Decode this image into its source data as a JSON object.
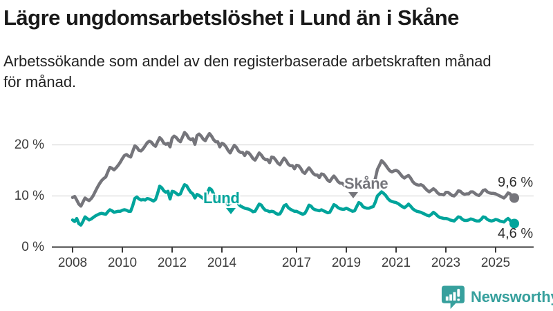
{
  "header": {
    "title": "Lägre ungdomsarbetslöshet i Lund än i Skåne",
    "subtitle_line1": "Arbetssökande som andel av den registerbaserade arbetskraften månad",
    "subtitle_line2": "för månad."
  },
  "chart_data": {
    "type": "line",
    "title": "Lägre ungdomsarbetslöshet i Lund än i Skåne",
    "xlabel": "",
    "ylabel": "Arbetssökande som andel av den registerbaserade arbetskraften",
    "unit": "%",
    "x_start": "2008-01",
    "x_end": "2025-10",
    "x_resolution": "monthly",
    "ylim": [
      0,
      24
    ],
    "grid": "horizontal",
    "legend_position": "inline-labels",
    "x_tick_years": [
      2008,
      2010,
      2012,
      2014,
      2017,
      2019,
      2021,
      2023,
      2025
    ],
    "x_tick_labels": [
      "2008",
      "2010",
      "2012",
      "2014",
      "2017",
      "2019",
      "2021",
      "2023",
      "2025"
    ],
    "y_ticks": [
      {
        "value": 0,
        "label": "0 %"
      },
      {
        "value": 10,
        "label": "10 %"
      },
      {
        "value": 20,
        "label": "20 %"
      }
    ],
    "series": [
      {
        "name": "Skåne",
        "color": "#75757b",
        "end_label": "9,6 %",
        "end_value": 9.6,
        "values": [
          9.7,
          9.9,
          9.2,
          8.4,
          8.0,
          8.8,
          9.6,
          9.3,
          9.1,
          9.5,
          10.1,
          10.9,
          11.7,
          12.4,
          13.0,
          13.4,
          13.7,
          14.7,
          15.6,
          15.4,
          15.1,
          15.5,
          16.0,
          16.6,
          17.3,
          17.9,
          18.1,
          17.8,
          17.6,
          18.7,
          19.8,
          19.5,
          18.9,
          18.8,
          19.2,
          19.8,
          20.4,
          20.7,
          20.5,
          20.0,
          19.7,
          20.6,
          21.4,
          21.0,
          20.3,
          20.1,
          20.3,
          19.6,
          21.3,
          21.7,
          21.4,
          20.9,
          20.6,
          21.5,
          22.4,
          22.0,
          21.3,
          21.0,
          21.2,
          20.1,
          21.8,
          22.1,
          21.7,
          21.1,
          20.8,
          21.6,
          22.2,
          21.7,
          21.0,
          20.6,
          20.6,
          19.6,
          20.3,
          20.1,
          19.6,
          18.9,
          18.4,
          19.2,
          19.9,
          19.5,
          18.8,
          18.5,
          18.5,
          17.9,
          18.6,
          18.4,
          17.9,
          17.3,
          17.0,
          17.7,
          18.4,
          18.0,
          17.4,
          17.1,
          17.1,
          16.5,
          17.6,
          17.5,
          17.0,
          16.4,
          16.1,
          16.8,
          17.4,
          16.9,
          16.2,
          15.9,
          15.9,
          15.3,
          16.0,
          15.9,
          15.4,
          14.7,
          14.4,
          15.0,
          15.5,
          15.0,
          14.4,
          14.1,
          14.1,
          13.6,
          14.3,
          14.2,
          13.7,
          13.1,
          12.8,
          13.4,
          13.9,
          13.4,
          12.8,
          12.5,
          12.5,
          12.1,
          12.7,
          12.6,
          12.2,
          11.8,
          11.6,
          12.3,
          12.9,
          12.5,
          12.0,
          11.8,
          11.9,
          11.9,
          12.3,
          12.4,
          13.4,
          15.2,
          16.0,
          16.9,
          16.5,
          16.0,
          15.4,
          14.9,
          14.7,
          14.9,
          15.0,
          14.8,
          14.3,
          13.8,
          13.5,
          13.8,
          14.0,
          13.5,
          12.8,
          12.4,
          12.2,
          12.1,
          12.2,
          12.0,
          11.5,
          11.1,
          10.8,
          11.1,
          11.4,
          11.1,
          10.6,
          10.3,
          10.3,
          10.2,
          10.7,
          10.7,
          10.4,
          10.1,
          10.0,
          10.4,
          11.0,
          10.9,
          10.5,
          10.3,
          10.4,
          10.4,
          10.8,
          10.8,
          10.5,
          10.2,
          10.1,
          10.5,
          11.1,
          11.2,
          10.8,
          10.6,
          10.5,
          10.5,
          10.4,
          10.2,
          10.0,
          9.8,
          9.6,
          10.0,
          10.6,
          10.4,
          9.7,
          9.6
        ]
      },
      {
        "name": "Lund",
        "color": "#00a49b",
        "end_label": "4,6 %",
        "end_value": 4.6,
        "values": [
          5.3,
          5.0,
          5.6,
          4.6,
          4.3,
          5.0,
          5.9,
          5.6,
          5.3,
          5.5,
          5.8,
          6.1,
          6.3,
          6.5,
          6.6,
          6.5,
          6.4,
          6.9,
          7.3,
          7.1,
          6.8,
          6.9,
          7.0,
          7.0,
          7.2,
          7.3,
          7.2,
          7.0,
          7.0,
          8.1,
          9.5,
          9.8,
          9.4,
          9.2,
          9.3,
          9.2,
          9.5,
          9.4,
          9.2,
          9.0,
          9.3,
          10.5,
          11.9,
          11.6,
          11.0,
          10.7,
          10.9,
          9.4,
          10.9,
          10.8,
          10.5,
          10.2,
          10.4,
          11.4,
          12.2,
          12.0,
          11.3,
          10.7,
          10.4,
          9.6,
          10.3,
          10.1,
          9.8,
          9.5,
          9.7,
          10.6,
          11.5,
          11.2,
          10.4,
          9.9,
          9.6,
          9.3,
          9.1,
          8.9,
          8.6,
          8.3,
          8.5,
          9.1,
          9.7,
          9.3,
          8.4,
          8.0,
          7.8,
          7.6,
          7.5,
          7.4,
          7.2,
          6.9,
          7.0,
          7.7,
          8.4,
          8.2,
          7.6,
          7.2,
          7.1,
          6.9,
          7.0,
          6.9,
          6.6,
          6.4,
          6.5,
          7.2,
          8.1,
          8.3,
          7.7,
          7.4,
          7.2,
          7.0,
          7.0,
          6.8,
          6.6,
          6.4,
          6.6,
          7.3,
          8.2,
          8.0,
          7.5,
          7.3,
          7.2,
          7.1,
          7.3,
          7.1,
          6.9,
          6.7,
          6.8,
          7.5,
          8.3,
          8.1,
          7.7,
          7.5,
          7.4,
          7.4,
          7.6,
          7.4,
          7.2,
          7.0,
          7.1,
          7.9,
          8.7,
          8.5,
          7.9,
          7.7,
          7.6,
          7.6,
          7.8,
          7.9,
          8.8,
          10.0,
          10.4,
          10.8,
          10.5,
          10.1,
          9.5,
          9.1,
          8.9,
          8.8,
          8.7,
          8.5,
          8.2,
          7.9,
          7.7,
          8.0,
          8.4,
          8.0,
          7.5,
          7.2,
          7.0,
          6.9,
          6.8,
          6.6,
          6.4,
          6.2,
          6.1,
          6.4,
          6.8,
          6.5,
          6.1,
          5.8,
          5.7,
          5.6,
          5.6,
          5.5,
          5.3,
          5.2,
          5.1,
          5.5,
          5.9,
          5.8,
          5.4,
          5.2,
          5.2,
          5.3,
          5.5,
          5.4,
          5.2,
          5.1,
          5.1,
          5.4,
          5.9,
          5.8,
          5.4,
          5.2,
          5.1,
          5.2,
          5.4,
          5.3,
          5.1,
          5.0,
          4.9,
          5.3,
          5.6,
          5.2,
          4.7,
          4.6
        ]
      }
    ],
    "axis_color": "#3a3a3a",
    "gridline_color": "#e2e2e2"
  },
  "branding": {
    "name": "Newsworthy",
    "color": "#37a09d",
    "icon": "bar-chart-speech-bubble-icon"
  }
}
